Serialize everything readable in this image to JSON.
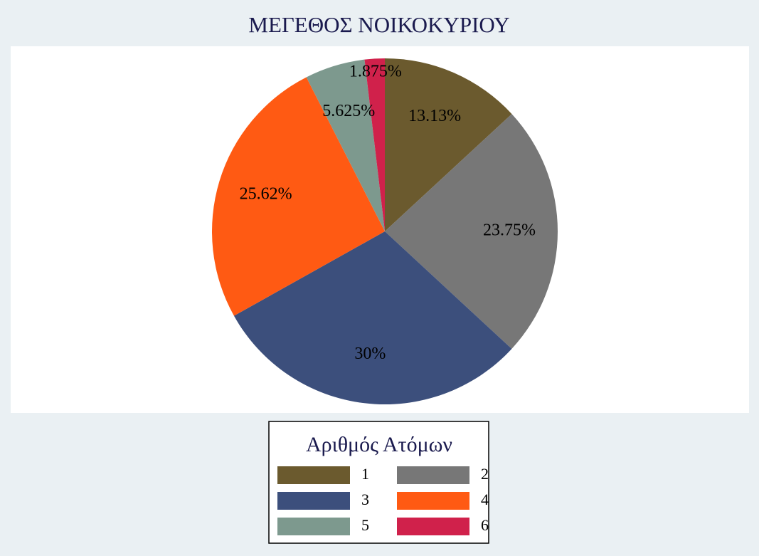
{
  "chart_data": {
    "type": "pie",
    "title": "ΜΕΓΕΘΟΣ ΝΟΙΚΟΚΥΡΙΟΥ",
    "legend_title": "Αριθμός Ατόμων",
    "categories": [
      "1",
      "2",
      "3",
      "4",
      "5",
      "6"
    ],
    "values": [
      13.13,
      23.75,
      30,
      25.62,
      5.625,
      1.875
    ],
    "value_labels": [
      "13.13%",
      "23.75%",
      "30%",
      "25.62%",
      "5.625%",
      "1.875%"
    ],
    "colors": [
      "#6b5a2e",
      "#777777",
      "#3c4f7c",
      "#ff5a13",
      "#7d998e",
      "#d0214b"
    ],
    "legend_position": "bottom"
  }
}
